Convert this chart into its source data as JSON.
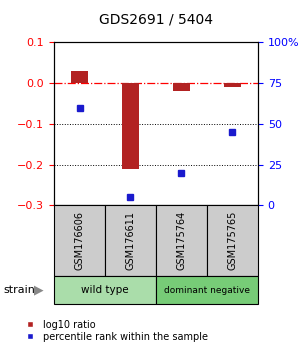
{
  "title": "GDS2691 / 5404",
  "samples": [
    "GSM176606",
    "GSM176611",
    "GSM175764",
    "GSM175765"
  ],
  "log10_ratio": [
    0.03,
    -0.21,
    -0.02,
    -0.01
  ],
  "percentile_rank": [
    60,
    5,
    20,
    45
  ],
  "bar_color": "#b22222",
  "dot_color": "#1a1acd",
  "left_ylim": [
    -0.3,
    0.1
  ],
  "right_ylim": [
    0,
    100
  ],
  "left_yticks": [
    -0.3,
    -0.2,
    -0.1,
    0.0,
    0.1
  ],
  "right_yticks": [
    0,
    25,
    50,
    75,
    100
  ],
  "right_yticklabels": [
    "0",
    "25",
    "50",
    "75",
    "100%"
  ],
  "groups": [
    {
      "label": "wild type",
      "samples": [
        0,
        1
      ],
      "color": "#aaddaa"
    },
    {
      "label": "dominant negative",
      "samples": [
        2,
        3
      ],
      "color": "#77cc77"
    }
  ],
  "group_box_color": "#cccccc",
  "hline_y": 0.0,
  "dotted_lines": [
    -0.1,
    -0.2
  ],
  "legend_ratio_label": "log10 ratio",
  "legend_rank_label": "percentile rank within the sample",
  "bar_width": 0.35,
  "strain_label": "strain"
}
